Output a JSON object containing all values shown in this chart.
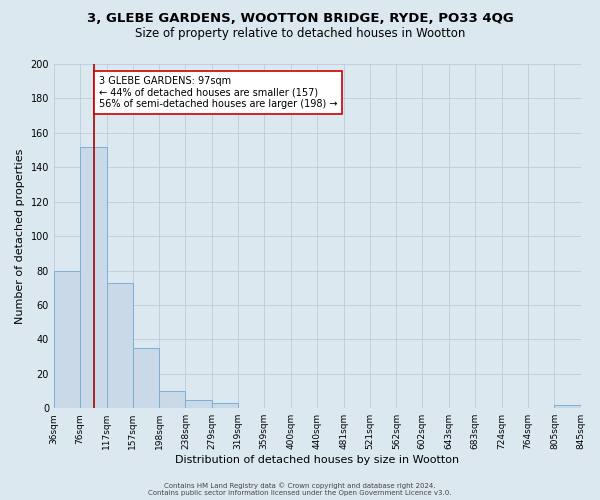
{
  "title1": "3, GLEBE GARDENS, WOOTTON BRIDGE, RYDE, PO33 4QG",
  "title2": "Size of property relative to detached houses in Wootton",
  "xlabel": "Distribution of detached houses by size in Wootton",
  "ylabel": "Number of detached properties",
  "footer1": "Contains HM Land Registry data © Crown copyright and database right 2024.",
  "footer2": "Contains public sector information licensed under the Open Government Licence v3.0.",
  "bin_edges": [
    36,
    76,
    117,
    157,
    198,
    238,
    279,
    319,
    359,
    400,
    440,
    481,
    521,
    562,
    602,
    643,
    683,
    724,
    764,
    805,
    845
  ],
  "bin_counts": [
    80,
    152,
    73,
    35,
    10,
    5,
    3,
    0,
    0,
    0,
    0,
    0,
    0,
    0,
    0,
    0,
    0,
    0,
    0,
    2
  ],
  "bar_color": "#c9d9e8",
  "bar_edge_color": "#7bafd4",
  "property_size": 97,
  "vline_color": "#aa0000",
  "annotation_line1": "3 GLEBE GARDENS: 97sqm",
  "annotation_line2": "← 44% of detached houses are smaller (157)",
  "annotation_line3": "56% of semi-detached houses are larger (198) →",
  "annotation_box_edgecolor": "#cc0000",
  "annotation_box_facecolor": "#ffffff",
  "ylim": [
    0,
    200
  ],
  "yticks": [
    0,
    20,
    40,
    60,
    80,
    100,
    120,
    140,
    160,
    180,
    200
  ],
  "grid_color": "#bbccdd",
  "background_color": "#dce8f0",
  "plot_bg_color": "#dce8f0",
  "title1_fontsize": 9.5,
  "title2_fontsize": 8.5,
  "xlabel_fontsize": 8,
  "ylabel_fontsize": 8,
  "tick_fontsize": 6.5,
  "footer_fontsize": 5,
  "annotation_fontsize": 7
}
